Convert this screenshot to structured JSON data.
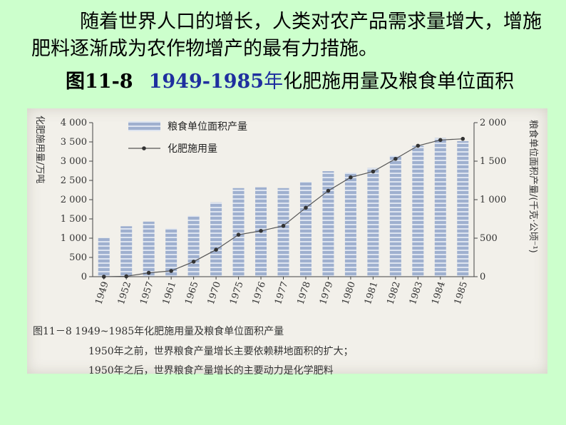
{
  "text": {
    "para1": "随着世界人口的增长，人类对农产品需求量增大，增施肥料逐渐成为农作物增产的最有力措施。",
    "fig_lead": "图11-8",
    "fig_years": "1949-1985",
    "fig_nian": "年",
    "fig_rest": "化肥施用量及粮食单位面积"
  },
  "caption": {
    "line1": "图11－8  1949~1985年化肥施用量及粮食单位面积产量",
    "line2": "1950年之前，世界粮食产量增长主要依赖耕地面积的扩大；",
    "line3": "1950年之后，世界粮食产量增长的主要动力是化学肥料"
  },
  "colors": {
    "background": "#ccffcc",
    "bar": "#9fb0cf",
    "bar_stripe": "#dde4f0",
    "line": "#555555"
  },
  "chart_data": {
    "type": "bar",
    "categories": [
      "1949",
      "1952",
      "1957",
      "1961",
      "1965",
      "1970",
      "1975",
      "1976",
      "1977",
      "1978",
      "1979",
      "1980",
      "1981",
      "1982",
      "1983",
      "1984",
      "1985"
    ],
    "series": [
      {
        "name": "粮食单位面积产量",
        "kind": "bar",
        "axis": "right",
        "values": [
          505,
          655,
          715,
          625,
          790,
          965,
          1150,
          1160,
          1150,
          1230,
          1370,
          1350,
          1410,
          1570,
          1700,
          1800,
          1760
        ]
      },
      {
        "name": "化肥施用量",
        "kind": "line",
        "axis": "left",
        "values": [
          0,
          10,
          100,
          150,
          390,
          700,
          1090,
          1190,
          1320,
          1790,
          2230,
          2580,
          2730,
          3060,
          3400,
          3550,
          3580
        ]
      }
    ],
    "ylabel_left": "化肥施用量/万吨",
    "ylabel_right": "粮食单位面积产量/(千克·公顷⁻¹)",
    "yticks_left": [
      "0",
      "500",
      "1 000",
      "1 500",
      "2 000",
      "2 500",
      "3 000",
      "3 500",
      "4 000"
    ],
    "yticks_right": [
      "0",
      "500",
      "1 000",
      "1 500",
      "2 000"
    ],
    "ylim_left": [
      0,
      4000
    ],
    "ylim_right": [
      0,
      2000
    ],
    "legend_position": "top-left",
    "grid": false
  }
}
